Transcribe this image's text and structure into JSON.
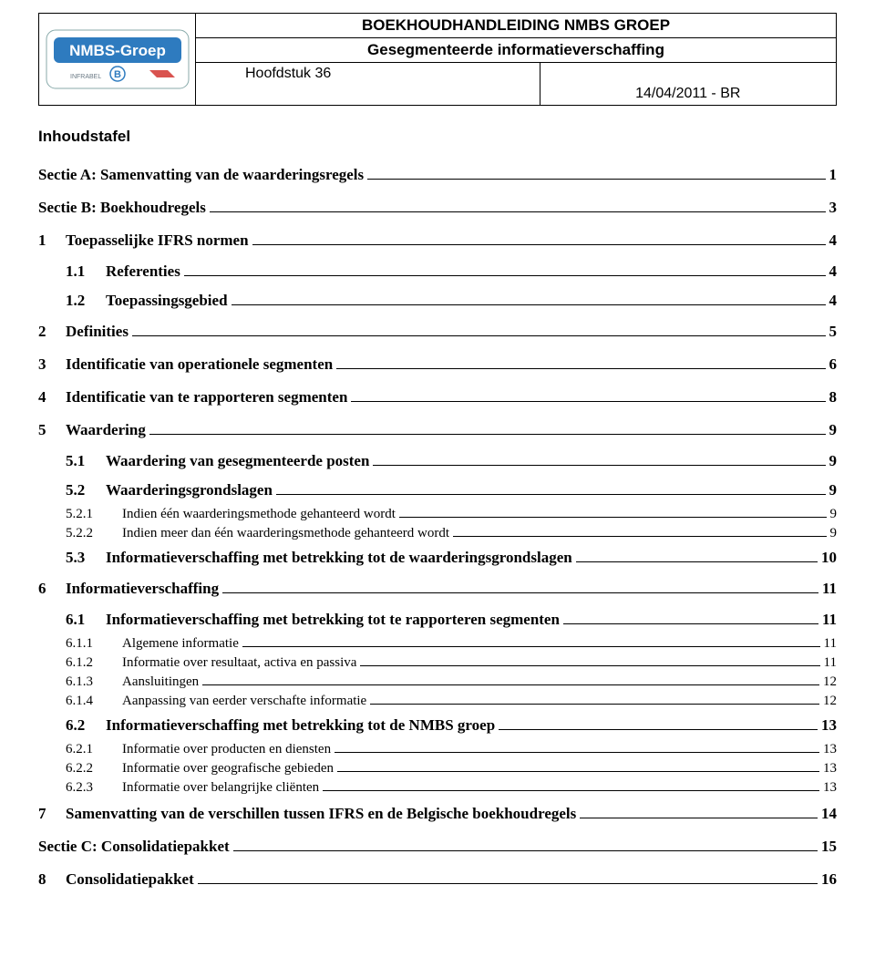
{
  "header": {
    "title": "BOEKHOUDHANDLEIDING NMBS GROEP",
    "subtitle": "Gesegmenteerde informatieverschaffing",
    "chapter": "Hoofdstuk 36",
    "date": "14/04/2011 - BR",
    "logo_text": "NMBS-Groep",
    "logo_bg": "#2e7bbf",
    "logo_text_color": "#ffffff"
  },
  "toc_title": "Inhoudstafel",
  "toc": [
    {
      "level": 0,
      "num": "",
      "label": "Sectie A: Samenvatting van de waarderingsregels",
      "page": "1"
    },
    {
      "level": 0,
      "num": "",
      "label": "Sectie B: Boekhoudregels",
      "page": "3"
    },
    {
      "level": 1,
      "num": "1",
      "label": "Toepasselijke IFRS normen",
      "page": "4"
    },
    {
      "level": 2,
      "num": "1.1",
      "label": "Referenties",
      "page": "4"
    },
    {
      "level": 2,
      "num": "1.2",
      "label": "Toepassingsgebied",
      "page": "4"
    },
    {
      "level": 1,
      "num": "2",
      "label": "Definities",
      "page": "5"
    },
    {
      "level": 1,
      "num": "3",
      "label": "Identificatie van operationele segmenten",
      "page": "6"
    },
    {
      "level": 1,
      "num": "4",
      "label": "Identificatie van te rapporteren segmenten",
      "page": "8"
    },
    {
      "level": 1,
      "num": "5",
      "label": "Waardering",
      "page": "9"
    },
    {
      "level": 2,
      "num": "5.1",
      "label": "Waardering van gesegmenteerde posten",
      "page": "9"
    },
    {
      "level": 2,
      "num": "5.2",
      "label": "Waarderingsgrondslagen",
      "page": "9"
    },
    {
      "level": 3,
      "num": "5.2.1",
      "label": "Indien één waarderingsmethode gehanteerd wordt",
      "page": "9"
    },
    {
      "level": 3,
      "num": "5.2.2",
      "label": "Indien meer dan één waarderingsmethode gehanteerd wordt",
      "page": "9"
    },
    {
      "level": 2,
      "num": "5.3",
      "label": "Informatieverschaffing met betrekking tot de waarderingsgrondslagen",
      "page": "10"
    },
    {
      "level": 1,
      "num": "6",
      "label": "Informatieverschaffing",
      "page": "11"
    },
    {
      "level": 2,
      "num": "6.1",
      "label": "Informatieverschaffing met betrekking tot te rapporteren segmenten",
      "page": "11"
    },
    {
      "level": 3,
      "num": "6.1.1",
      "label": "Algemene informatie",
      "page": "11"
    },
    {
      "level": 3,
      "num": "6.1.2",
      "label": "Informatie over resultaat, activa en passiva",
      "page": "11"
    },
    {
      "level": 3,
      "num": "6.1.3",
      "label": "Aansluitingen",
      "page": "12"
    },
    {
      "level": 3,
      "num": "6.1.4",
      "label": "Aanpassing van eerder verschafte informatie",
      "page": "12"
    },
    {
      "level": 2,
      "num": "6.2",
      "label": "Informatieverschaffing met betrekking tot de NMBS groep",
      "page": "13"
    },
    {
      "level": 3,
      "num": "6.2.1",
      "label": "Informatie over producten en diensten",
      "page": "13"
    },
    {
      "level": 3,
      "num": "6.2.2",
      "label": "Informatie over geografische gebieden",
      "page": "13"
    },
    {
      "level": 3,
      "num": "6.2.3",
      "label": "Informatie over belangrijke cliënten",
      "page": "13"
    },
    {
      "level": 1,
      "num": "7",
      "label": "Samenvatting van de verschillen tussen IFRS en de Belgische boekhoudregels",
      "page": "14"
    },
    {
      "level": 0,
      "num": "",
      "label": "Sectie C: Consolidatiepakket",
      "page": "15"
    },
    {
      "level": 1,
      "num": "8",
      "label": "Consolidatiepakket",
      "page": "16"
    }
  ]
}
